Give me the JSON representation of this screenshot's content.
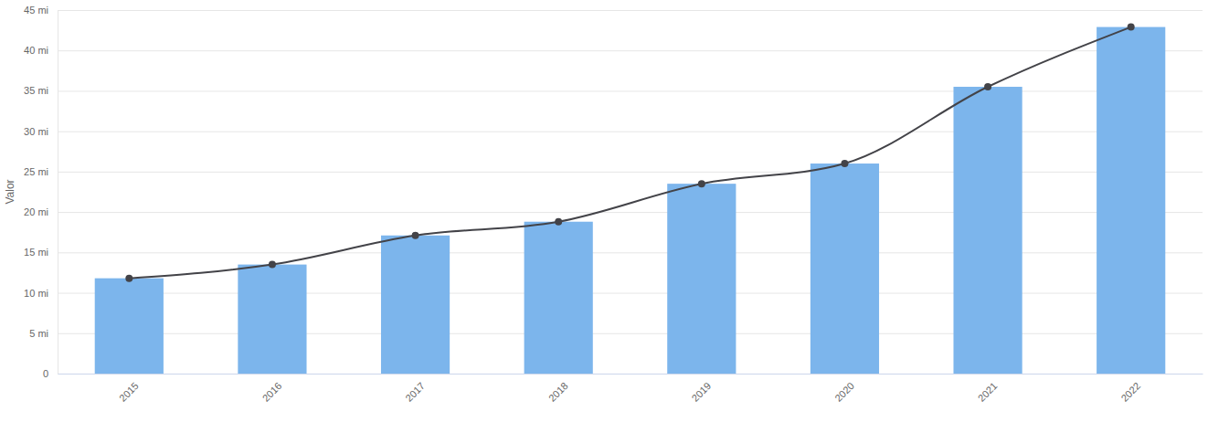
{
  "chart_data": {
    "type": "bar",
    "y_label": "Valor",
    "categories": [
      "2015",
      "2016",
      "2017",
      "2018",
      "2019",
      "2020",
      "2021",
      "2022"
    ],
    "series": [
      {
        "type": "bar",
        "color": "#7cb5ec",
        "values": [
          11.8,
          13.5,
          17.1,
          18.8,
          23.5,
          26.0,
          35.5,
          42.9
        ]
      },
      {
        "type": "line",
        "color": "#434348",
        "marker": "circle",
        "line_style": "solid",
        "values": [
          11.8,
          13.5,
          17.1,
          18.8,
          23.5,
          26.0,
          35.5,
          42.9
        ]
      }
    ],
    "ylim": [
      0,
      45
    ],
    "yticks": [
      0,
      {
        "value": 5,
        "label": "5 mi"
      },
      {
        "value": 10,
        "label": "10 mi"
      },
      {
        "value": 15,
        "label": "15 mi"
      },
      {
        "value": 20,
        "label": "20 mi"
      },
      {
        "value": 25,
        "label": "25 mi"
      },
      {
        "value": 30,
        "label": "30 mi"
      },
      {
        "value": 35,
        "label": "35 mi"
      },
      {
        "value": 40,
        "label": "40 mi"
      },
      {
        "value": 45,
        "label": "45 mi"
      }
    ],
    "grid": true
  }
}
